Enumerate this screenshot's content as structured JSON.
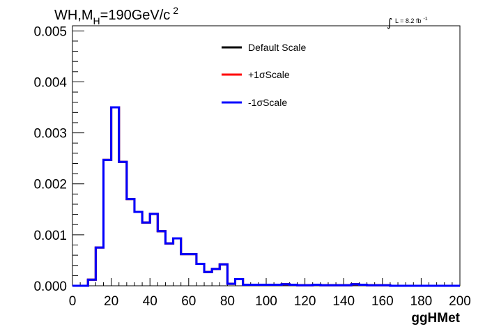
{
  "chart_data": {
    "type": "line",
    "title": {
      "main": "WH,M",
      "subscript": "H",
      "rest": "=190GeV/c",
      "superscript": "2"
    },
    "luminosity": {
      "integral_symbol": "∫",
      "text": "L = 8.2 fb",
      "superscript": "-1"
    },
    "xlabel": "ggHMet",
    "ylabel": "",
    "xlim": [
      0,
      200
    ],
    "ylim": [
      0,
      0.0051
    ],
    "xticks": [
      0,
      20,
      40,
      60,
      80,
      100,
      120,
      140,
      160,
      180,
      200
    ],
    "xtick_labels": [
      "0",
      "20",
      "40",
      "60",
      "80",
      "100",
      "120",
      "140",
      "160",
      "180",
      "200"
    ],
    "yticks": [
      0,
      0.001,
      0.002,
      0.003,
      0.004,
      0.005
    ],
    "ytick_labels": [
      "0.000",
      "0.001",
      "0.002",
      "0.003",
      "0.004",
      "0.005"
    ],
    "grid": false,
    "legend_position": "top-center",
    "bin_edges": [
      0,
      4,
      8,
      12,
      16,
      20,
      24,
      28,
      32,
      36,
      40,
      44,
      48,
      52,
      56,
      60,
      64,
      68,
      72,
      76,
      80,
      84,
      88,
      92,
      96,
      100,
      104,
      108,
      112,
      116,
      120,
      124,
      128,
      132,
      136,
      140,
      144,
      148,
      152,
      156,
      160,
      164,
      168,
      172,
      176,
      180,
      184,
      188,
      192,
      196,
      200
    ],
    "series": [
      {
        "name": "Default Scale",
        "color": "#000000",
        "values": [
          0,
          0,
          0.00012,
          0.00075,
          0.00247,
          0.0035,
          0.00243,
          0.0017,
          0.00145,
          0.00124,
          0.00141,
          0.00107,
          0.00083,
          0.00093,
          0.00062,
          0.00062,
          0.00043,
          0.00027,
          0.00033,
          0.00042,
          4e-05,
          0.00013,
          2e-05,
          2e-05,
          2e-05,
          2e-05,
          2e-05,
          3e-05,
          2e-05,
          1e-05,
          1e-05,
          2e-05,
          1e-05,
          1e-05,
          1e-05,
          1e-05,
          3e-05,
          2e-05,
          1e-05,
          1e-05,
          1e-05,
          0,
          0,
          0,
          0,
          0,
          0,
          0,
          0,
          0
        ]
      },
      {
        "name": "+1σScale",
        "color": "#ff0000",
        "values": [
          0,
          0,
          0.00012,
          0.00075,
          0.00247,
          0.0035,
          0.00243,
          0.0017,
          0.00145,
          0.00124,
          0.00141,
          0.00107,
          0.00083,
          0.00093,
          0.00062,
          0.00062,
          0.00043,
          0.00027,
          0.00033,
          0.00042,
          4e-05,
          0.00013,
          2e-05,
          2e-05,
          2e-05,
          2e-05,
          2e-05,
          3e-05,
          2e-05,
          1e-05,
          1e-05,
          2e-05,
          1e-05,
          1e-05,
          1e-05,
          1e-05,
          3e-05,
          2e-05,
          1e-05,
          1e-05,
          1e-05,
          0,
          0,
          0,
          0,
          0,
          0,
          0,
          0,
          0
        ]
      },
      {
        "name": "-1σScale",
        "color": "#0000ff",
        "values": [
          0,
          0,
          0.00012,
          0.00075,
          0.00247,
          0.0035,
          0.00243,
          0.0017,
          0.00145,
          0.00124,
          0.00141,
          0.00107,
          0.00083,
          0.00093,
          0.00062,
          0.00062,
          0.00043,
          0.00027,
          0.00033,
          0.00042,
          4e-05,
          0.00013,
          2e-05,
          2e-05,
          2e-05,
          2e-05,
          2e-05,
          3e-05,
          2e-05,
          1e-05,
          1e-05,
          2e-05,
          1e-05,
          1e-05,
          1e-05,
          1e-05,
          3e-05,
          2e-05,
          1e-05,
          1e-05,
          1e-05,
          0,
          0,
          0,
          0,
          0,
          0,
          0,
          0,
          0
        ]
      }
    ]
  }
}
